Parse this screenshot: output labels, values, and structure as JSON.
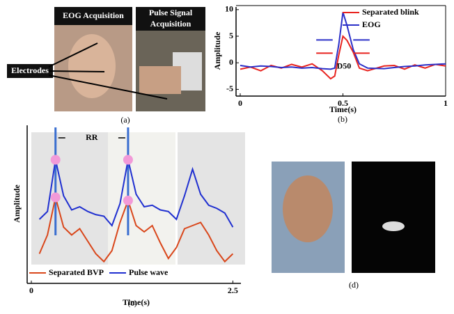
{
  "panels": {
    "a": {
      "label": "(a)",
      "title_left": "EOG Acquisition",
      "title_right_1": "Pulse Signal",
      "title_right_2": "Acquisition",
      "electrodes": "Electrodes"
    },
    "d": {
      "label": "(d)"
    }
  },
  "chart_data": [
    {
      "type": "line",
      "label": "(b)",
      "xlabel": "Time(s)",
      "ylabel": "Amplitude",
      "annotation": "D50",
      "x": [
        0,
        0.05,
        0.1,
        0.15,
        0.2,
        0.25,
        0.3,
        0.35,
        0.4,
        0.44,
        0.46,
        0.48,
        0.5,
        0.52,
        0.55,
        0.58,
        0.62,
        0.7,
        0.75,
        0.8,
        0.85,
        0.9,
        0.95,
        1
      ],
      "series": [
        {
          "name": "Separated blink",
          "color": "#e8231f",
          "values": [
            -1.2,
            -0.8,
            -1.5,
            -0.5,
            -1.0,
            -0.3,
            -0.8,
            -0.2,
            -1.5,
            -3.0,
            -2.5,
            1.5,
            5.0,
            4.2,
            2.0,
            -1.0,
            -1.5,
            -0.6,
            -0.5,
            -1.2,
            -0.4,
            -1.0,
            -0.3,
            -0.6
          ]
        },
        {
          "name": "EOG",
          "color": "#2a2fc8",
          "values": [
            -0.5,
            -0.8,
            -0.6,
            -0.7,
            -0.9,
            -0.8,
            -1.0,
            -0.9,
            -1.1,
            -1.2,
            -1.0,
            3.5,
            9.5,
            7.0,
            2.5,
            -0.2,
            -1.0,
            -1.1,
            -0.9,
            -0.7,
            -0.6,
            -0.4,
            -0.3,
            -0.2
          ]
        }
      ],
      "xlim": [
        0,
        1
      ],
      "xticks": [
        0,
        0.5,
        1
      ],
      "ylim": [
        -6,
        10.5
      ],
      "yticks": [
        -5,
        0,
        5,
        10
      ],
      "legend": "upper-right"
    },
    {
      "type": "line",
      "label": "(c)",
      "xlabel": "Time(s)",
      "ylabel": "Amplitude",
      "annotation": "RR",
      "x": [
        0.1,
        0.2,
        0.3,
        0.4,
        0.5,
        0.6,
        0.7,
        0.8,
        0.9,
        1.0,
        1.1,
        1.2,
        1.3,
        1.4,
        1.5,
        1.6,
        1.7,
        1.8,
        1.9,
        2.0,
        2.1,
        2.2,
        2.3,
        2.4,
        2.5
      ],
      "series": [
        {
          "name": "Separated BVP",
          "color": "#d9461a",
          "values": [
            1.8,
            3.0,
            5.4,
            3.5,
            3.0,
            3.4,
            2.6,
            1.8,
            1.3,
            2.0,
            3.8,
            5.2,
            3.6,
            3.2,
            3.6,
            2.5,
            1.5,
            2.2,
            3.4,
            3.6,
            3.8,
            3.0,
            2.0,
            1.3,
            1.8
          ]
        },
        {
          "name": "Pulse wave",
          "color": "#1f2fd0",
          "values": [
            4.0,
            4.5,
            7.8,
            5.5,
            4.6,
            4.8,
            4.5,
            4.3,
            4.2,
            3.6,
            5.0,
            7.8,
            5.6,
            4.8,
            4.9,
            4.6,
            4.5,
            4.0,
            5.5,
            7.2,
            5.6,
            4.9,
            4.7,
            4.4,
            3.5
          ]
        }
      ],
      "peaks": [
        2,
        11
      ],
      "xlim": [
        0,
        2.6
      ],
      "xticks": [
        0,
        2.5
      ],
      "ylim": [
        0,
        10
      ],
      "legend": "lower-center"
    }
  ]
}
